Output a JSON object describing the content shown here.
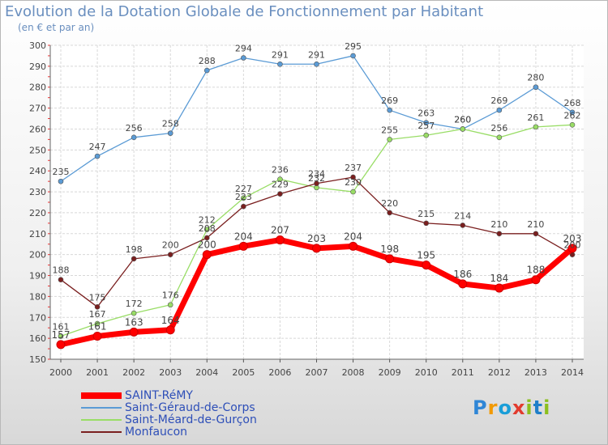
{
  "chart_data": {
    "type": "line",
    "title": "Evolution de la Dotation Globale de Fonctionnement par Habitant",
    "subtitle": "(en € et par an)",
    "x": [
      "2000",
      "2001",
      "2002",
      "2003",
      "2004",
      "2005",
      "2006",
      "2007",
      "2008",
      "2009",
      "2010",
      "2011",
      "2012",
      "2013",
      "2014"
    ],
    "ylim": [
      150,
      300
    ],
    "yticks": [
      150,
      160,
      170,
      180,
      190,
      200,
      210,
      220,
      230,
      240,
      250,
      260,
      270,
      280,
      290,
      300
    ],
    "grid": true,
    "legend_position": "bottom-left",
    "series": [
      {
        "name": "SAINT-RéMY",
        "color": "#ff0000",
        "values": [
          157,
          161,
          163,
          164,
          200,
          204,
          207,
          203,
          204,
          198,
          195,
          186,
          184,
          188,
          203
        ],
        "labels": [
          "157",
          "161",
          "163",
          "164",
          "200",
          "204",
          "207",
          "203",
          "204",
          "198",
          "195",
          "186",
          "184",
          "188",
          "203"
        ]
      },
      {
        "name": "Saint-Géraud-de-Corps",
        "color": "#5b9bd5",
        "values": [
          235,
          247,
          256,
          258,
          288,
          294,
          291,
          291,
          295,
          269,
          263,
          260,
          269,
          280,
          268
        ],
        "labels": [
          "235",
          "247",
          "256",
          "258",
          "288",
          "294",
          "291",
          "291",
          "295",
          "269",
          "263",
          "260",
          "269",
          "280",
          "268"
        ]
      },
      {
        "name": "Saint-Méard-de-Gurçon",
        "color": "#99dd66",
        "values": [
          161,
          167,
          172,
          176,
          212,
          227,
          236,
          232,
          230,
          255,
          257,
          260,
          256,
          261,
          262
        ],
        "labels": [
          "161",
          "167",
          "172",
          "176",
          "212",
          "227",
          "236",
          "232",
          "230",
          "255",
          "257",
          "260",
          "256",
          "261",
          "262"
        ]
      },
      {
        "name": "Monfaucon",
        "color": "#7a1f1f",
        "values": [
          188,
          175,
          198,
          200,
          208,
          223,
          229,
          234,
          237,
          220,
          215,
          214,
          210,
          210,
          200
        ],
        "labels": [
          "188",
          "175",
          "198",
          "200",
          "208",
          "223",
          "229",
          "234",
          "237",
          "220",
          "215",
          "214",
          "210",
          "210",
          "200"
        ]
      }
    ]
  },
  "logo": {
    "letters": [
      "P",
      "r",
      "o",
      "x",
      "i",
      "t",
      "i"
    ]
  }
}
